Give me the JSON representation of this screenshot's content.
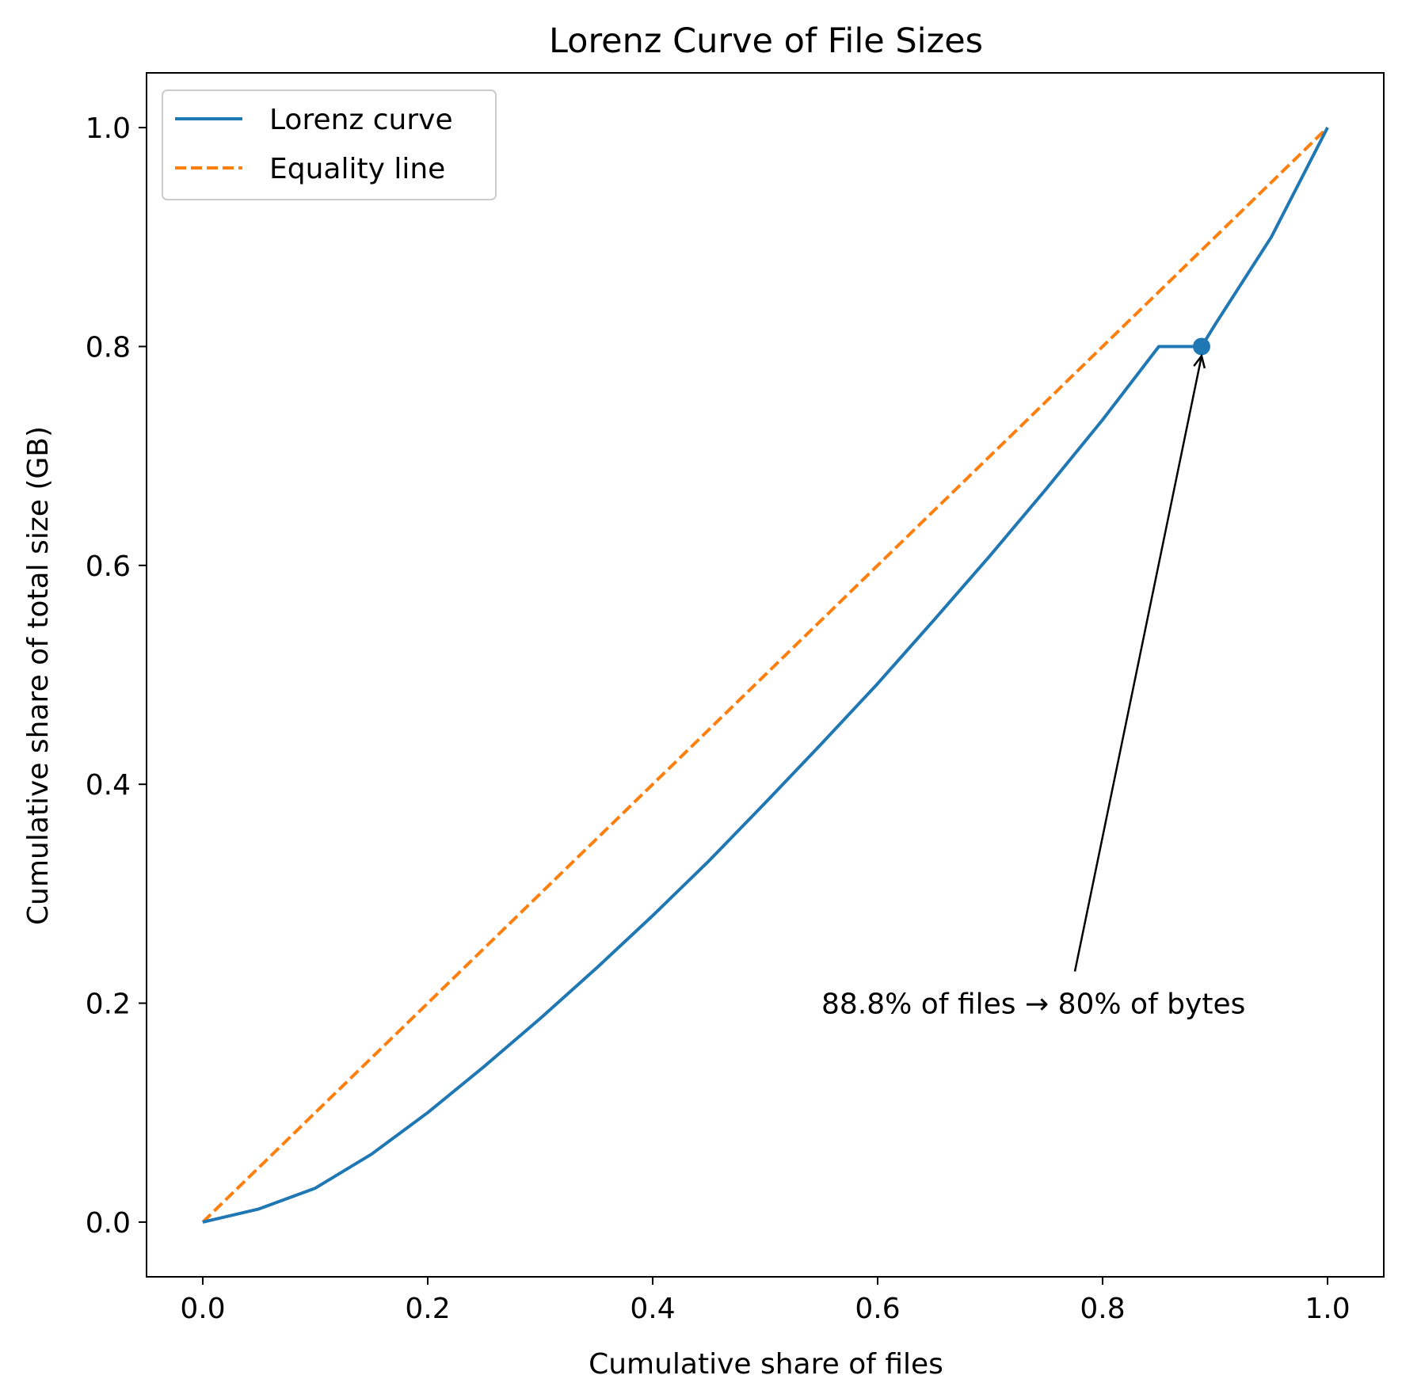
{
  "chart_data": {
    "type": "line",
    "title": "Lorenz Curve of File Sizes",
    "xlabel": "Cumulative share of files",
    "ylabel": "Cumulative share of total size (GB)",
    "xlim": [
      -0.05,
      1.05
    ],
    "ylim": [
      -0.05,
      1.05
    ],
    "xticks": [
      0.0,
      0.2,
      0.4,
      0.6,
      0.8,
      1.0
    ],
    "yticks": [
      0.0,
      0.2,
      0.4,
      0.6,
      0.8,
      1.0
    ],
    "xtick_labels": [
      "0.0",
      "0.2",
      "0.4",
      "0.6",
      "0.8",
      "1.0"
    ],
    "ytick_labels": [
      "0.0",
      "0.2",
      "0.4",
      "0.6",
      "0.8",
      "1.0"
    ],
    "grid": false,
    "legend_position": "top-left",
    "series": [
      {
        "name": "Lorenz curve",
        "color": "#1f77b4",
        "style": "solid",
        "x": [
          0.0,
          0.05,
          0.1,
          0.15,
          0.2,
          0.25,
          0.3,
          0.35,
          0.4,
          0.45,
          0.5,
          0.55,
          0.6,
          0.65,
          0.7,
          0.75,
          0.8,
          0.85,
          0.888,
          0.9,
          0.95,
          1.0
        ],
        "y": [
          0.0,
          0.012,
          0.031,
          0.062,
          0.1,
          0.142,
          0.186,
          0.232,
          0.28,
          0.33,
          0.383,
          0.437,
          0.492,
          0.55,
          0.609,
          0.67,
          0.733,
          0.8,
          0.8,
          0.82,
          0.9,
          1.0
        ]
      },
      {
        "name": "Equality line",
        "color": "#ff7f0e",
        "style": "dashed",
        "x": [
          0.0,
          1.0
        ],
        "y": [
          0.0,
          1.0
        ]
      }
    ],
    "highlight_point": {
      "x": 0.888,
      "y": 0.8,
      "color": "#1f77b4"
    },
    "annotation": {
      "text": "88.8% of files → 80% of bytes",
      "text_x": 0.55,
      "text_y": 0.2,
      "target_x": 0.888,
      "target_y": 0.8
    }
  }
}
